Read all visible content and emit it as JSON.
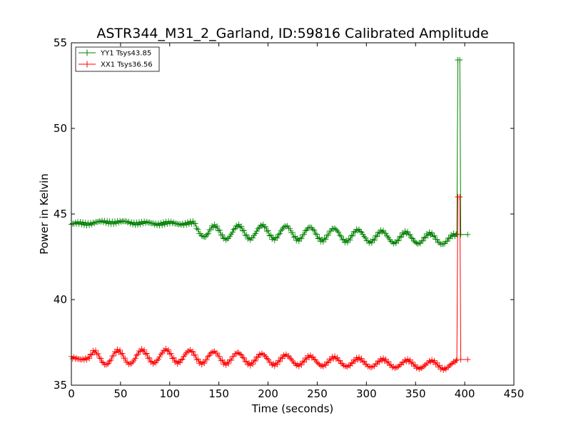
{
  "chart_data": {
    "type": "line",
    "title": "ASTR344_M31_2_Garland, ID:59816 Calibrated Amplitude",
    "xlabel": "Time (seconds)",
    "ylabel": "Power in Kelvin",
    "xlim": [
      0,
      450
    ],
    "ylim": [
      35,
      55
    ],
    "xticks": [
      0,
      50,
      100,
      150,
      200,
      250,
      300,
      350,
      400,
      450
    ],
    "yticks": [
      35,
      40,
      45,
      50,
      55
    ],
    "xtick_labels": [
      "0",
      "50",
      "100",
      "150",
      "200",
      "250",
      "300",
      "350",
      "400",
      "450"
    ],
    "ytick_labels": [
      "35",
      "40",
      "45",
      "50",
      "55"
    ],
    "grid": false,
    "legend": "top-left",
    "series": [
      {
        "name": "YY1 Tsys43.85",
        "color": "#008000",
        "marker": "plus",
        "baseline": [
          [
            0,
            44.4
          ],
          [
            40,
            44.55
          ],
          [
            80,
            44.45
          ],
          [
            125,
            44.45
          ],
          [
            130,
            43.9
          ],
          [
            200,
            43.95
          ],
          [
            300,
            43.7
          ],
          [
            390,
            43.5
          ]
        ],
        "oscillation": {
          "period": 24.5,
          "start": 130,
          "amplitude_start": 0.35,
          "amplitude_end": 0.3,
          "phase": 145
        },
        "spike": [
          [
            392,
            43.8
          ],
          [
            393,
            54
          ],
          [
            395,
            54
          ],
          [
            396,
            43.8
          ],
          [
            403,
            43.8
          ]
        ]
      },
      {
        "name": "XX1 Tsys36.56",
        "color": "#ff0000",
        "marker": "plus",
        "baseline": [
          [
            0,
            36.55
          ],
          [
            100,
            36.7
          ],
          [
            200,
            36.5
          ],
          [
            300,
            36.3
          ],
          [
            390,
            36.15
          ]
        ],
        "oscillation": {
          "period": 24.5,
          "start": 15,
          "amplitude_start": 0.35,
          "amplitude_end": 0.28,
          "phase": 23
        },
        "spike": [
          [
            392,
            36.5
          ],
          [
            393,
            46
          ],
          [
            395,
            46
          ],
          [
            396,
            36.5
          ],
          [
            403,
            36.5
          ]
        ]
      }
    ]
  }
}
